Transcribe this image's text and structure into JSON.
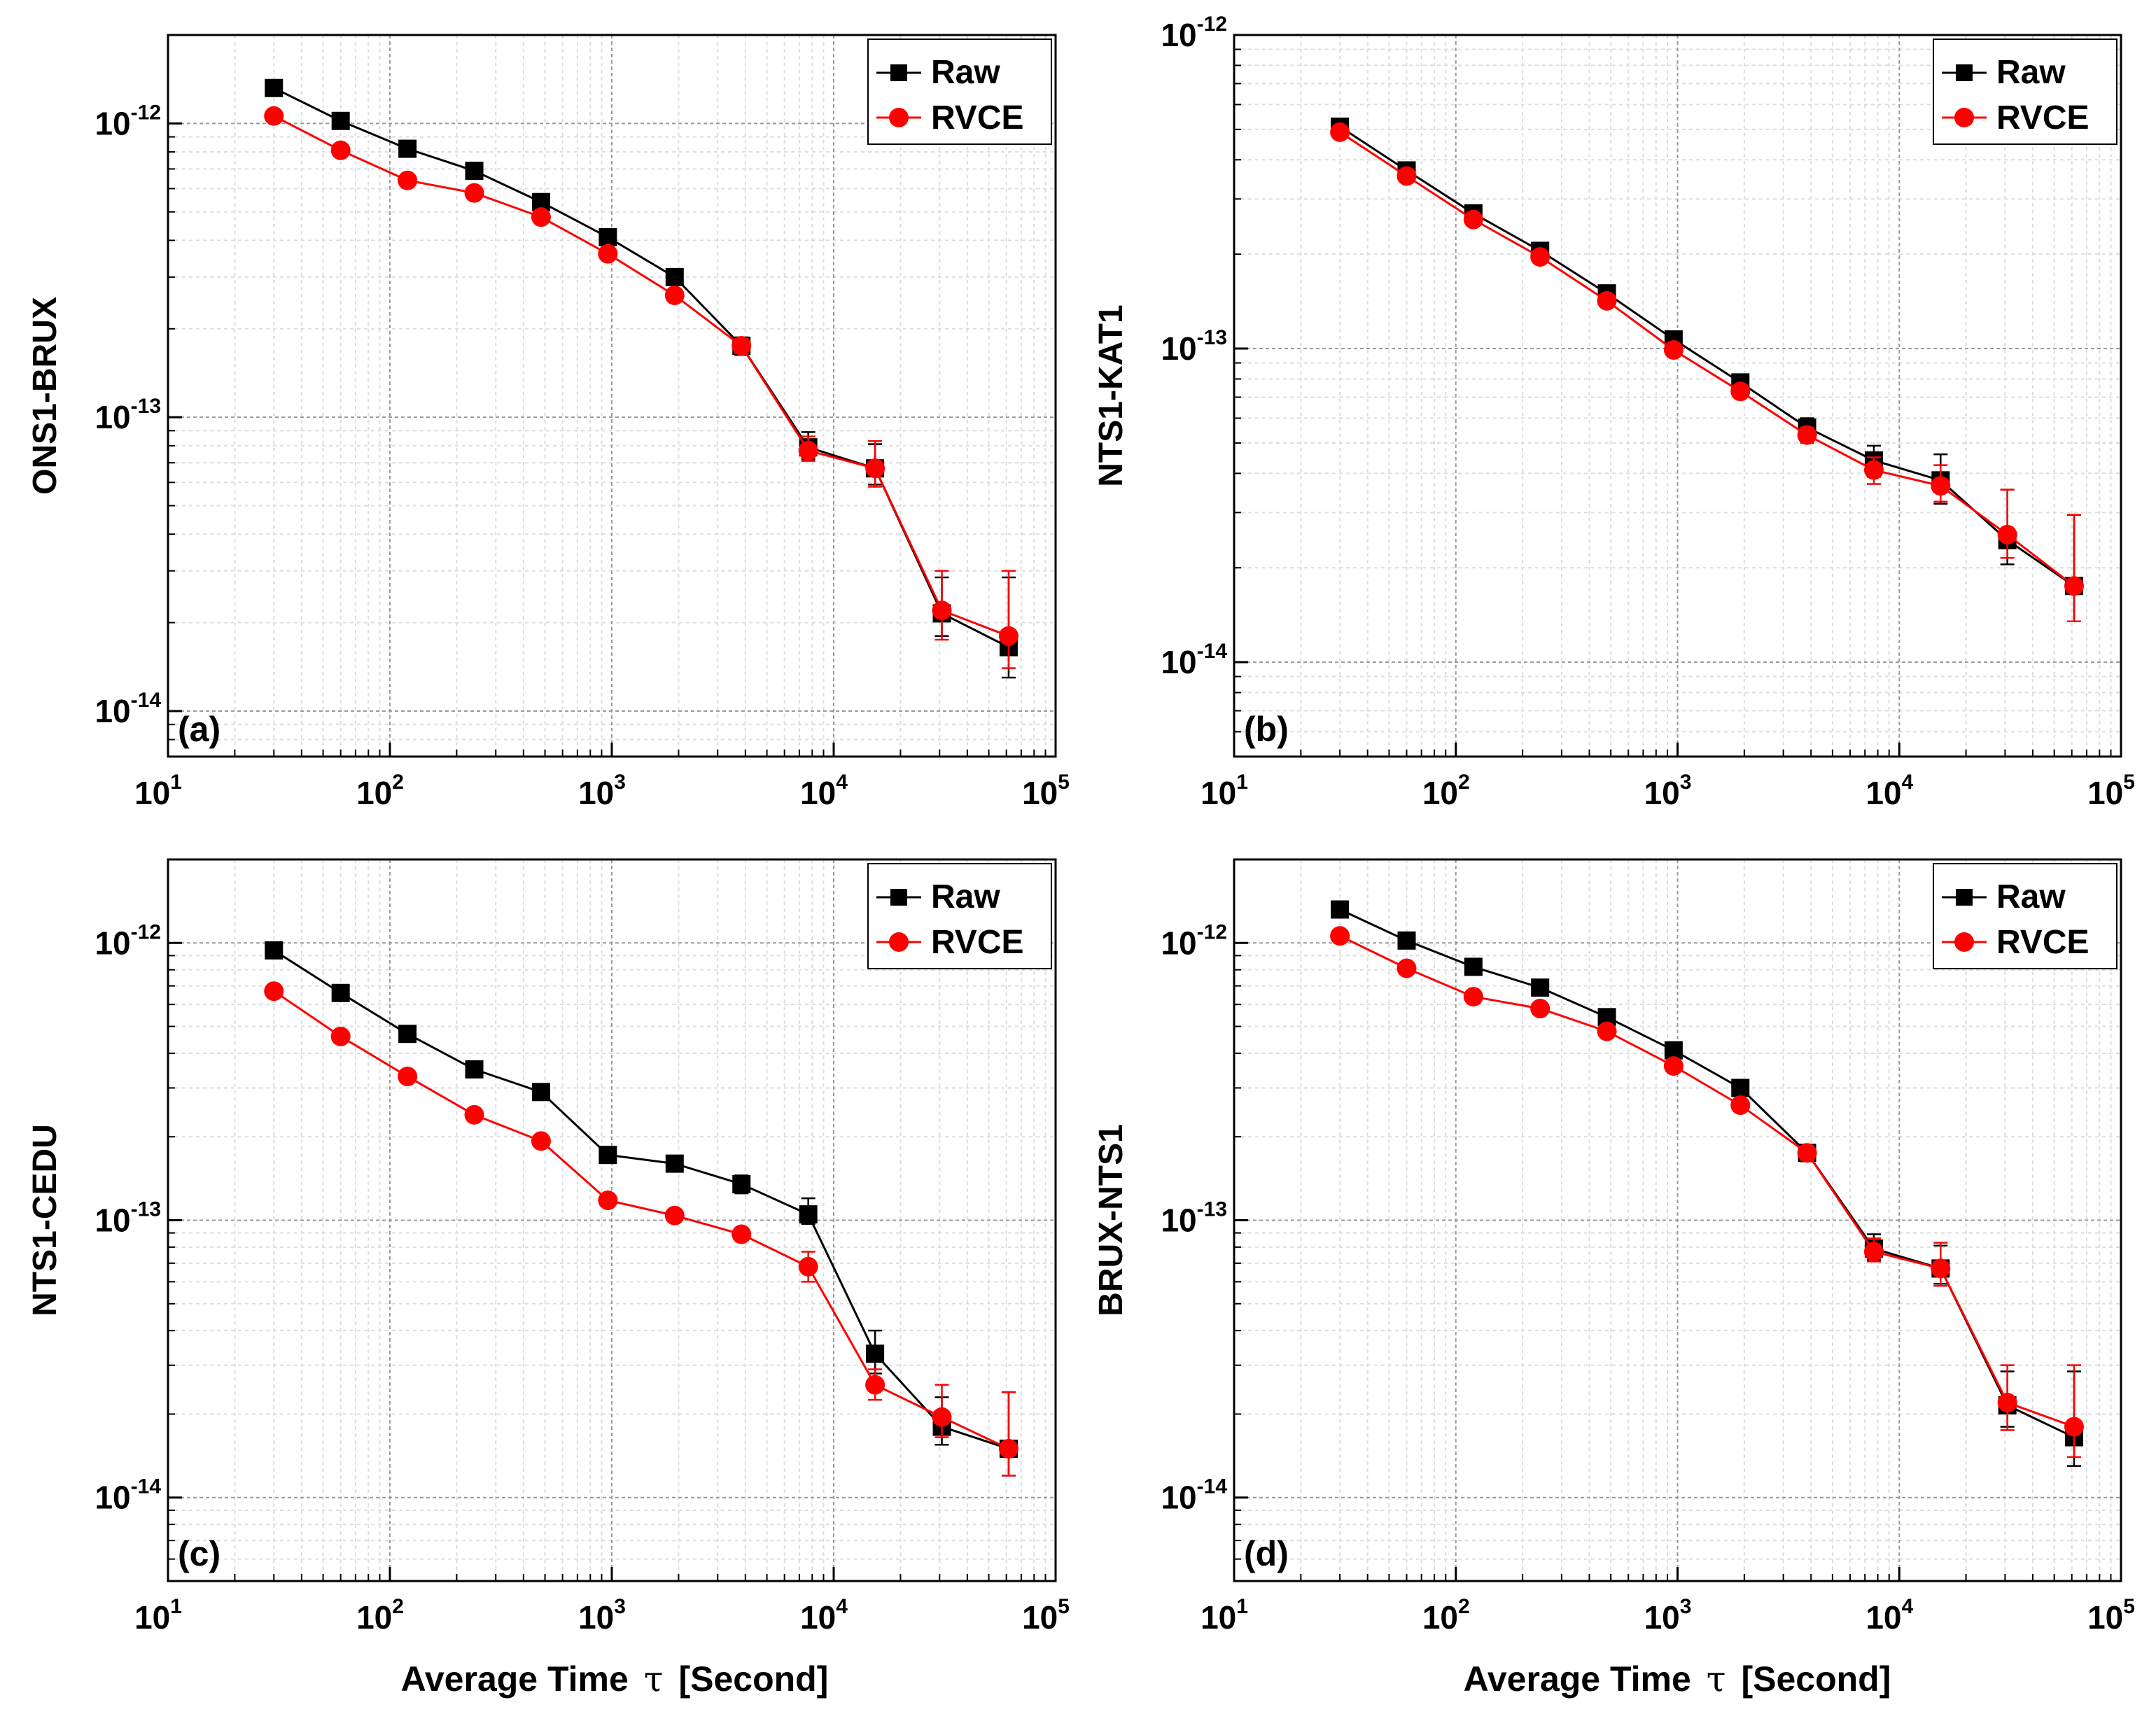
{
  "x_axis_label": "Average Time",
  "x_axis_tau": "τ",
  "x_axis_unit": "[Second]",
  "legend": {
    "raw": "Raw",
    "rvce": "RVCE"
  },
  "colors": {
    "raw": "#000000",
    "rvce": "#ff0000",
    "grid_major": "#9a9a9a",
    "grid_minor": "#dddddd"
  },
  "chart_data": [
    {
      "type": "line",
      "panel": "(a)",
      "ylabel": "ONS1-BRUX",
      "xscale": "log",
      "yscale": "log",
      "xlim": [
        10,
        100000
      ],
      "ylim": [
        7e-15,
        2e-12
      ],
      "x_ticks": [
        {
          "base": "10",
          "exp": "1"
        },
        {
          "base": "10",
          "exp": "2"
        },
        {
          "base": "10",
          "exp": "3"
        },
        {
          "base": "10",
          "exp": "4"
        },
        {
          "base": "10",
          "exp": "5"
        }
      ],
      "y_ticks": [
        {
          "base": "10",
          "exp": "-14",
          "value": 1e-14
        },
        {
          "base": "10",
          "exp": "-13",
          "value": 1e-13
        },
        {
          "base": "10",
          "exp": "-12",
          "value": 1e-12
        }
      ],
      "x": [
        30,
        60,
        120,
        240,
        480,
        960,
        1920,
        3840,
        7680,
        15360,
        30720,
        61440
      ],
      "series": [
        {
          "name": "Raw",
          "values": [
            1.32e-12,
            1.02e-12,
            8.2e-13,
            6.9e-13,
            5.4e-13,
            4.1e-13,
            3e-13,
            1.75e-13,
            7.9e-14,
            6.7e-14,
            2.15e-14,
            1.65e-14
          ],
          "err_low": [
            0,
            0,
            0,
            0,
            0,
            0,
            0,
            1.2e-14,
            7e-15,
            8e-15,
            3.5e-15,
            3.5e-15
          ],
          "err_high": [
            0,
            0,
            0,
            0,
            0,
            0,
            0,
            1.2e-14,
            1e-14,
            1.4e-14,
            7e-15,
            1.2e-14
          ]
        },
        {
          "name": "RVCE",
          "values": [
            1.06e-12,
            8.1e-13,
            6.4e-13,
            5.8e-13,
            4.8e-13,
            3.6e-13,
            2.6e-13,
            1.75e-13,
            7.7e-14,
            6.7e-14,
            2.2e-14,
            1.8e-14
          ],
          "err_low": [
            0,
            0,
            0,
            0,
            0,
            0,
            0,
            1e-14,
            6e-15,
            9e-15,
            4.5e-15,
            4e-15
          ],
          "err_high": [
            0,
            0,
            0,
            0,
            0,
            0,
            0,
            1e-14,
            9e-15,
            1.6e-14,
            8e-15,
            1.2e-14
          ]
        }
      ]
    },
    {
      "type": "line",
      "panel": "(b)",
      "ylabel": "NTS1-KAT1",
      "xscale": "log",
      "yscale": "log",
      "xlim": [
        10,
        100000
      ],
      "ylim": [
        5e-15,
        1e-12
      ],
      "x_ticks": [
        {
          "base": "10",
          "exp": "1"
        },
        {
          "base": "10",
          "exp": "2"
        },
        {
          "base": "10",
          "exp": "3"
        },
        {
          "base": "10",
          "exp": "4"
        },
        {
          "base": "10",
          "exp": "5"
        }
      ],
      "y_ticks": [
        {
          "base": "10",
          "exp": "-14",
          "value": 1e-14
        },
        {
          "base": "10",
          "exp": "-13",
          "value": 1e-13
        },
        {
          "base": "10",
          "exp": "-12",
          "value": 1e-12
        }
      ],
      "x": [
        30,
        60,
        120,
        240,
        480,
        960,
        1920,
        3840,
        7680,
        15360,
        30720,
        61440
      ],
      "series": [
        {
          "name": "Raw",
          "values": [
            5.1e-13,
            3.7e-13,
            2.7e-13,
            2.05e-13,
            1.5e-13,
            1.07e-13,
            7.8e-14,
            5.6e-14,
            4.4e-14,
            3.8e-14,
            2.45e-14,
            1.75e-14
          ],
          "err_low": [
            0,
            0,
            0,
            0,
            0,
            0,
            0,
            4e-15,
            5e-15,
            6e-15,
            4e-15,
            4e-15
          ],
          "err_high": [
            0,
            0,
            0,
            0,
            0,
            0,
            0,
            4e-15,
            5e-15,
            8e-15,
            1.1e-14,
            1.2e-14
          ]
        },
        {
          "name": "RVCE",
          "values": [
            4.9e-13,
            3.55e-13,
            2.58e-13,
            1.96e-13,
            1.42e-13,
            9.9e-14,
            7.3e-14,
            5.3e-14,
            4.1e-14,
            3.65e-14,
            2.55e-14,
            1.75e-14
          ],
          "err_low": [
            0,
            0,
            0,
            0,
            0,
            0,
            0,
            3e-15,
            4e-15,
            4e-15,
            4e-15,
            4e-15
          ],
          "err_high": [
            0,
            0,
            0,
            0,
            0,
            0,
            0,
            3e-15,
            4e-15,
            6e-15,
            1e-14,
            1.2e-14
          ]
        }
      ]
    },
    {
      "type": "line",
      "panel": "(c)",
      "ylabel": "NTS1-CEDU",
      "xscale": "log",
      "yscale": "log",
      "xlim": [
        10,
        100000
      ],
      "ylim": [
        5e-15,
        2e-12
      ],
      "x_ticks": [
        {
          "base": "10",
          "exp": "1"
        },
        {
          "base": "10",
          "exp": "2"
        },
        {
          "base": "10",
          "exp": "3"
        },
        {
          "base": "10",
          "exp": "4"
        },
        {
          "base": "10",
          "exp": "5"
        }
      ],
      "y_ticks": [
        {
          "base": "10",
          "exp": "-14",
          "value": 1e-14
        },
        {
          "base": "10",
          "exp": "-13",
          "value": 1e-13
        },
        {
          "base": "10",
          "exp": "-12",
          "value": 1e-12
        }
      ],
      "x": [
        30,
        60,
        120,
        240,
        480,
        960,
        1920,
        3840,
        7680,
        15360,
        30720,
        61440
      ],
      "series": [
        {
          "name": "Raw",
          "values": [
            9.4e-13,
            6.6e-13,
            4.7e-13,
            3.5e-13,
            2.9e-13,
            1.72e-13,
            1.6e-13,
            1.35e-13,
            1.05e-13,
            3.3e-14,
            1.8e-14,
            1.5e-14
          ],
          "err_low": [
            0,
            0,
            0,
            0,
            0,
            0,
            0,
            1e-14,
            8e-15,
            5e-15,
            2.5e-15,
            3e-15
          ],
          "err_high": [
            0,
            0,
            0,
            0,
            0,
            0,
            0,
            1e-14,
            1.5e-14,
            7e-15,
            5e-15,
            9e-15
          ]
        },
        {
          "name": "RVCE",
          "values": [
            6.7e-13,
            4.6e-13,
            3.3e-13,
            2.4e-13,
            1.93e-13,
            1.18e-13,
            1.04e-13,
            8.9e-14,
            6.8e-14,
            2.55e-14,
            1.95e-14,
            1.5e-14
          ],
          "err_low": [
            0,
            0,
            0,
            0,
            0,
            0,
            0,
            0,
            8e-15,
            3e-15,
            3e-15,
            3e-15
          ],
          "err_high": [
            0,
            0,
            0,
            0,
            0,
            0,
            0,
            0,
            9e-15,
            3.5e-15,
            6e-15,
            9e-15
          ]
        }
      ]
    },
    {
      "type": "line",
      "panel": "(d)",
      "ylabel": "BRUX-NTS1",
      "xscale": "log",
      "yscale": "log",
      "xlim": [
        10,
        100000
      ],
      "ylim": [
        5e-15,
        2e-12
      ],
      "x_ticks": [
        {
          "base": "10",
          "exp": "1"
        },
        {
          "base": "10",
          "exp": "2"
        },
        {
          "base": "10",
          "exp": "3"
        },
        {
          "base": "10",
          "exp": "4"
        },
        {
          "base": "10",
          "exp": "5"
        }
      ],
      "y_ticks": [
        {
          "base": "10",
          "exp": "-14",
          "value": 1e-14
        },
        {
          "base": "10",
          "exp": "-13",
          "value": 1e-13
        },
        {
          "base": "10",
          "exp": "-12",
          "value": 1e-12
        }
      ],
      "x": [
        30,
        60,
        120,
        240,
        480,
        960,
        1920,
        3840,
        7680,
        15360,
        30720,
        61440
      ],
      "series": [
        {
          "name": "Raw",
          "values": [
            1.32e-12,
            1.02e-12,
            8.2e-13,
            6.9e-13,
            5.4e-13,
            4.1e-13,
            3e-13,
            1.75e-13,
            7.9e-14,
            6.7e-14,
            2.15e-14,
            1.65e-14
          ],
          "err_low": [
            0,
            0,
            0,
            0,
            0,
            0,
            0,
            1.2e-14,
            7e-15,
            8e-15,
            3.5e-15,
            3.5e-15
          ],
          "err_high": [
            0,
            0,
            0,
            0,
            0,
            0,
            0,
            1.2e-14,
            1e-14,
            1.4e-14,
            7e-15,
            1.2e-14
          ]
        },
        {
          "name": "RVCE",
          "values": [
            1.06e-12,
            8.1e-13,
            6.4e-13,
            5.8e-13,
            4.8e-13,
            3.6e-13,
            2.6e-13,
            1.75e-13,
            7.7e-14,
            6.7e-14,
            2.2e-14,
            1.8e-14
          ],
          "err_low": [
            0,
            0,
            0,
            0,
            0,
            0,
            0,
            1e-14,
            6e-15,
            9e-15,
            4.5e-15,
            4e-15
          ],
          "err_high": [
            0,
            0,
            0,
            0,
            0,
            0,
            0,
            1e-14,
            9e-15,
            1.6e-14,
            8e-15,
            1.2e-14
          ]
        }
      ]
    }
  ]
}
